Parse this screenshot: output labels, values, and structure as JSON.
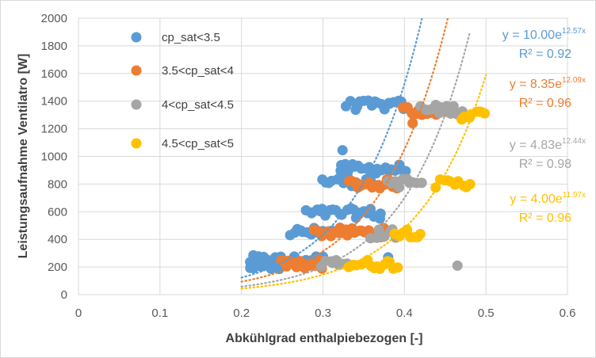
{
  "chart_data": {
    "type": "scatter",
    "title": "",
    "xlabel": "Abkühlgrad enthalpiebezogen [-]",
    "ylabel": "Leistungsaufnahme Ventilatro [W]",
    "xlim": [
      0,
      0.6
    ],
    "ylim": [
      0,
      2000
    ],
    "x_ticks": [
      "0",
      "0.1",
      "0.2",
      "0.3",
      "0.4",
      "0.5",
      "0.6"
    ],
    "y_ticks": [
      "0",
      "200",
      "400",
      "600",
      "800",
      "1000",
      "1200",
      "1400",
      "1600",
      "1800",
      "2000"
    ],
    "grid": true,
    "legend_position": "top-left",
    "series": [
      {
        "name": "cp_sat<3.5",
        "color": "#5b9bd5",
        "clusters": [
          {
            "y": 250,
            "x_from": 0.21,
            "x_to": 0.3
          },
          {
            "y": 220,
            "x_from": 0.21,
            "x_to": 0.25
          },
          {
            "y": 450,
            "x_from": 0.26,
            "x_to": 0.31
          },
          {
            "y": 590,
            "x_from": 0.28,
            "x_to": 0.37
          },
          {
            "y": 820,
            "x_from": 0.3,
            "x_to": 0.36
          },
          {
            "y": 910,
            "x_from": 0.32,
            "x_to": 0.4
          },
          {
            "y": 1370,
            "x_from": 0.33,
            "x_to": 0.4
          }
        ],
        "outliers": [
          [
            0.324,
            1045
          ],
          [
            0.38,
            270
          ],
          [
            0.37,
            550
          ]
        ],
        "trendline": {
          "equation": "y = 10.00e",
          "exponent": "12.57x",
          "r2": "R² = 0.92",
          "a": 10.0,
          "b": 12.57,
          "x_from": 0.2,
          "x_to": 0.43
        }
      },
      {
        "name": "3.5<cp_sat<4",
        "color": "#ed7d31",
        "clusters": [
          {
            "y": 220,
            "x_from": 0.25,
            "x_to": 0.3
          },
          {
            "y": 450,
            "x_from": 0.29,
            "x_to": 0.38
          },
          {
            "y": 800,
            "x_from": 0.33,
            "x_to": 0.39
          },
          {
            "y": 1330,
            "x_from": 0.4,
            "x_to": 0.45
          }
        ],
        "outliers": [
          [
            0.41,
            1240
          ]
        ],
        "trendline": {
          "equation": "y = 8.35e",
          "exponent": "12.09x",
          "r2": "R² = 0.96",
          "a": 8.35,
          "b": 12.09,
          "x_from": 0.2,
          "x_to": 0.46
        }
      },
      {
        "name": "4<cp_sat<4.5",
        "color": "#a5a5a5",
        "clusters": [
          {
            "y": 230,
            "x_from": 0.3,
            "x_to": 0.33
          },
          {
            "y": 440,
            "x_from": 0.36,
            "x_to": 0.39
          },
          {
            "y": 810,
            "x_from": 0.38,
            "x_to": 0.42
          },
          {
            "y": 1340,
            "x_from": 0.42,
            "x_to": 0.47
          }
        ],
        "outliers": [
          [
            0.465,
            210
          ]
        ],
        "trendline": {
          "equation": "y = 4.83e",
          "exponent": "12.44x",
          "r2": "R² = 0.98",
          "a": 4.83,
          "b": 12.44,
          "x_from": 0.2,
          "x_to": 0.48
        }
      },
      {
        "name": "4.5<cp_sat<5",
        "color": "#ffc000",
        "clusters": [
          {
            "y": 220,
            "x_from": 0.33,
            "x_to": 0.39
          },
          {
            "y": 450,
            "x_from": 0.39,
            "x_to": 0.42
          },
          {
            "y": 800,
            "x_from": 0.44,
            "x_to": 0.48
          },
          {
            "y": 1300,
            "x_from": 0.47,
            "x_to": 0.5
          }
        ],
        "outliers": [],
        "trendline": {
          "equation": "y = 4.00e",
          "exponent": "11.97x",
          "r2": "R² = 0.96",
          "a": 4.0,
          "b": 11.97,
          "x_from": 0.2,
          "x_to": 0.5
        }
      }
    ]
  }
}
